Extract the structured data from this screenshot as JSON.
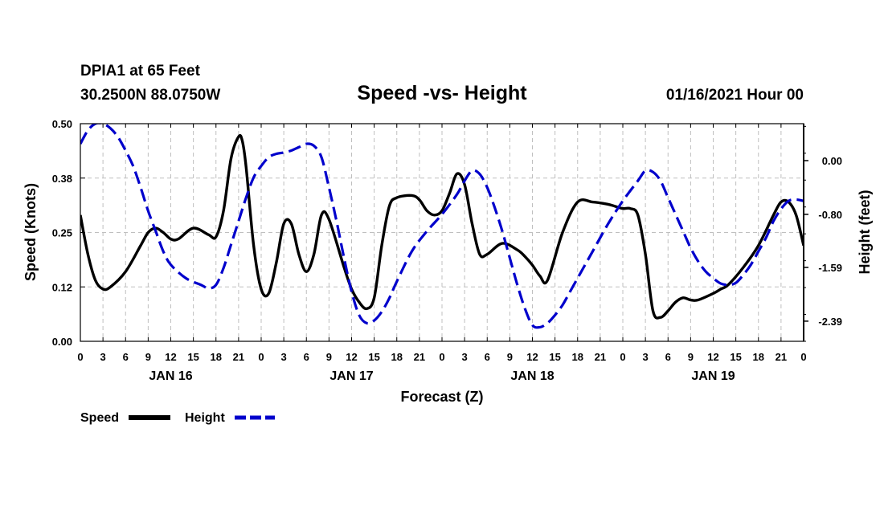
{
  "colors": {
    "speed": "#000000",
    "height": "#0000cc",
    "grid": "#bfbfbf"
  },
  "chart_data": {
    "type": "line",
    "station": "DPIA1 at 65 Feet",
    "location": "30.2500N 88.0750W",
    "title": "Speed -vs- Height",
    "issued": "01/16/2021 Hour 00",
    "xlabel": "Forecast (Z)",
    "ylabel_left": "Speed (Knots)",
    "ylabel_right": "Height (feet)",
    "x_hours_range": [
      0,
      96
    ],
    "x_tick_labels": [
      "0",
      "3",
      "6",
      "9",
      "12",
      "15",
      "18",
      "21",
      "0",
      "3",
      "6",
      "9",
      "12",
      "15",
      "18",
      "21",
      "0",
      "3",
      "6",
      "9",
      "12",
      "15",
      "18",
      "21",
      "0",
      "3",
      "6",
      "9",
      "12",
      "15",
      "18",
      "21",
      "0"
    ],
    "day_labels": [
      {
        "label": "JAN 16",
        "hour": 12
      },
      {
        "label": "JAN 17",
        "hour": 36
      },
      {
        "label": "JAN 18",
        "hour": 60
      },
      {
        "label": "JAN 19",
        "hour": 84
      }
    ],
    "y_left": {
      "range": [
        0.0,
        0.5
      ],
      "ticks": [
        0.0,
        0.125,
        0.25,
        0.375,
        0.5
      ],
      "tick_labels": [
        "0.00",
        "0.12",
        "0.25",
        "0.38",
        "0.50"
      ]
    },
    "y_right": {
      "range": [
        -2.69,
        0.55
      ],
      "ticks": [
        0.0,
        -0.8,
        -1.59,
        -2.39
      ],
      "tick_labels": [
        "0.00",
        "-0.80",
        "-1.59",
        "-2.39"
      ]
    },
    "grid": true,
    "legend": [
      {
        "name": "Speed",
        "style": "solid"
      },
      {
        "name": "Height",
        "style": "dashed"
      }
    ],
    "series": [
      {
        "name": "Speed",
        "axis": "left",
        "x": [
          0,
          1,
          2,
          3,
          4,
          6,
          8,
          9,
          10,
          11,
          12,
          13,
          15,
          17,
          18,
          19,
          20,
          21,
          21.5,
          22,
          23,
          24,
          25,
          26,
          27,
          28,
          29,
          30,
          31,
          32,
          33,
          35,
          36,
          37,
          38,
          39,
          40,
          41,
          42,
          44,
          45,
          46,
          47,
          48,
          49,
          50,
          51,
          52,
          53,
          54,
          56,
          58,
          59,
          60,
          61,
          62,
          64,
          66,
          68,
          70,
          71,
          72,
          73,
          74,
          75,
          76,
          77,
          78,
          79,
          80,
          81,
          82,
          84,
          85,
          86,
          88,
          90,
          92,
          93,
          94,
          95,
          96
        ],
        "values": [
          0.29,
          0.2,
          0.14,
          0.12,
          0.125,
          0.16,
          0.22,
          0.25,
          0.26,
          0.25,
          0.235,
          0.235,
          0.26,
          0.245,
          0.24,
          0.3,
          0.42,
          0.47,
          0.46,
          0.4,
          0.22,
          0.12,
          0.11,
          0.18,
          0.27,
          0.27,
          0.2,
          0.16,
          0.2,
          0.29,
          0.28,
          0.17,
          0.12,
          0.09,
          0.075,
          0.1,
          0.22,
          0.31,
          0.33,
          0.335,
          0.325,
          0.3,
          0.29,
          0.3,
          0.34,
          0.385,
          0.36,
          0.27,
          0.2,
          0.2,
          0.225,
          0.21,
          0.195,
          0.175,
          0.15,
          0.14,
          0.25,
          0.32,
          0.32,
          0.315,
          0.31,
          0.305,
          0.305,
          0.29,
          0.2,
          0.07,
          0.055,
          0.07,
          0.09,
          0.1,
          0.095,
          0.095,
          0.11,
          0.12,
          0.13,
          0.17,
          0.22,
          0.29,
          0.32,
          0.32,
          0.29,
          0.22
        ]
      },
      {
        "name": "Height",
        "axis": "right",
        "x": [
          0,
          1,
          2,
          3,
          4,
          5,
          6,
          7,
          8,
          9,
          10,
          11,
          12,
          14,
          16,
          17,
          18,
          19,
          20,
          21,
          22,
          23,
          24,
          25,
          26,
          27,
          28,
          29,
          30,
          31,
          32,
          33,
          34,
          35,
          36,
          37,
          38,
          39,
          40,
          41,
          42,
          44,
          46,
          48,
          50,
          51,
          52,
          53,
          54,
          55,
          56,
          57,
          58,
          59,
          60,
          61,
          62,
          63,
          64,
          65,
          66,
          68,
          70,
          72,
          74,
          75,
          76,
          77,
          78,
          79,
          80,
          81,
          82,
          83,
          84,
          85,
          86,
          87,
          88,
          89,
          90,
          91,
          92,
          93,
          94,
          95,
          96
        ],
        "values": [
          0.25,
          0.45,
          0.55,
          0.55,
          0.48,
          0.35,
          0.15,
          -0.08,
          -0.4,
          -0.75,
          -1.05,
          -1.35,
          -1.55,
          -1.75,
          -1.85,
          -1.9,
          -1.85,
          -1.6,
          -1.25,
          -0.9,
          -0.55,
          -0.25,
          -0.08,
          0.05,
          0.1,
          0.12,
          0.15,
          0.2,
          0.25,
          0.22,
          0.05,
          -0.4,
          -0.9,
          -1.45,
          -1.95,
          -2.3,
          -2.42,
          -2.38,
          -2.25,
          -2.05,
          -1.8,
          -1.35,
          -1.05,
          -0.8,
          -0.5,
          -0.3,
          -0.15,
          -0.2,
          -0.4,
          -0.7,
          -1.05,
          -1.45,
          -1.85,
          -2.2,
          -2.45,
          -2.48,
          -2.42,
          -2.3,
          -2.15,
          -1.95,
          -1.75,
          -1.35,
          -0.95,
          -0.6,
          -0.3,
          -0.15,
          -0.17,
          -0.3,
          -0.55,
          -0.8,
          -1.05,
          -1.3,
          -1.5,
          -1.65,
          -1.75,
          -1.83,
          -1.85,
          -1.82,
          -1.7,
          -1.55,
          -1.35,
          -1.15,
          -0.9,
          -0.72,
          -0.6,
          -0.58,
          -0.6
        ]
      }
    ]
  }
}
